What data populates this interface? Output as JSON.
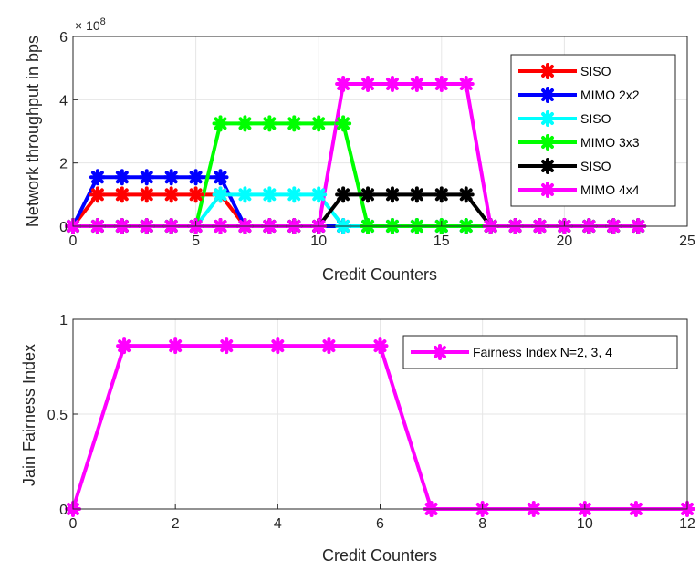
{
  "chart_data": [
    {
      "type": "line",
      "title": "",
      "xlabel": "Credit Counters",
      "ylabel": "Network throughput in bps",
      "y_exponent_label": "× 10",
      "y_exponent_power": "8",
      "xlim": [
        0,
        25
      ],
      "ylim": [
        0,
        6
      ],
      "x_ticks": [
        0,
        5,
        10,
        15,
        20,
        25
      ],
      "y_ticks": [
        0,
        2,
        4,
        6
      ],
      "grid": true,
      "legend_position": "top-right",
      "x": [
        0,
        1,
        2,
        3,
        4,
        5,
        6,
        7,
        8,
        9,
        10,
        11,
        12,
        13,
        14,
        15,
        16,
        17,
        18,
        19,
        20,
        21,
        22,
        23
      ],
      "series": [
        {
          "name": "SISO",
          "color": "#ff0000",
          "values": [
            0,
            1,
            1,
            1,
            1,
            1,
            1,
            0,
            0,
            0,
            0,
            0,
            0,
            0,
            0,
            0,
            0,
            0,
            0,
            0,
            0,
            0,
            0,
            0
          ]
        },
        {
          "name": "MIMO 2x2",
          "color": "#0000ff",
          "values": [
            0,
            1.55,
            1.55,
            1.55,
            1.55,
            1.55,
            1.55,
            0,
            0,
            0,
            0,
            0,
            0,
            0,
            0,
            0,
            0,
            0,
            0,
            0,
            0,
            0,
            0,
            0
          ]
        },
        {
          "name": "SISO",
          "color": "#00ffff",
          "values": [
            0,
            0,
            0,
            0,
            0,
            0,
            1,
            1,
            1,
            1,
            1,
            0,
            0,
            0,
            0,
            0,
            0,
            0,
            0,
            0,
            0,
            0,
            0,
            0
          ]
        },
        {
          "name": "MIMO 3x3",
          "color": "#00ff00",
          "values": [
            0,
            0,
            0,
            0,
            0,
            0,
            3.25,
            3.25,
            3.25,
            3.25,
            3.25,
            3.25,
            0,
            0,
            0,
            0,
            0,
            0,
            0,
            0,
            0,
            0,
            0,
            0
          ]
        },
        {
          "name": "SISO",
          "color": "#000000",
          "values": [
            0,
            0,
            0,
            0,
            0,
            0,
            0,
            0,
            0,
            0,
            0,
            1,
            1,
            1,
            1,
            1,
            1,
            0,
            0,
            0,
            0,
            0,
            0,
            0
          ]
        },
        {
          "name": "MIMO 4x4",
          "color": "#ff00ff",
          "values": [
            0,
            0,
            0,
            0,
            0,
            0,
            0,
            0,
            0,
            0,
            0,
            4.5,
            4.5,
            4.5,
            4.5,
            4.5,
            4.5,
            0,
            0,
            0,
            0,
            0,
            0,
            0
          ]
        }
      ]
    },
    {
      "type": "line",
      "title": "",
      "xlabel": "Credit Counters",
      "ylabel": "Jain Fairness Index",
      "xlim": [
        0,
        12
      ],
      "ylim": [
        0,
        1
      ],
      "x_ticks": [
        0,
        2,
        4,
        6,
        8,
        10,
        12
      ],
      "y_ticks": [
        0,
        0.5,
        1
      ],
      "grid": true,
      "legend_position": "top-right",
      "x": [
        0,
        1,
        2,
        3,
        4,
        5,
        6,
        7,
        8,
        9,
        10,
        11,
        12
      ],
      "series": [
        {
          "name": "Fairness Index N=2, 3, 4",
          "color": "#ff00ff",
          "values": [
            0,
            0.86,
            0.86,
            0.86,
            0.86,
            0.86,
            0.86,
            0,
            0,
            0,
            0,
            0,
            0
          ]
        }
      ]
    }
  ]
}
